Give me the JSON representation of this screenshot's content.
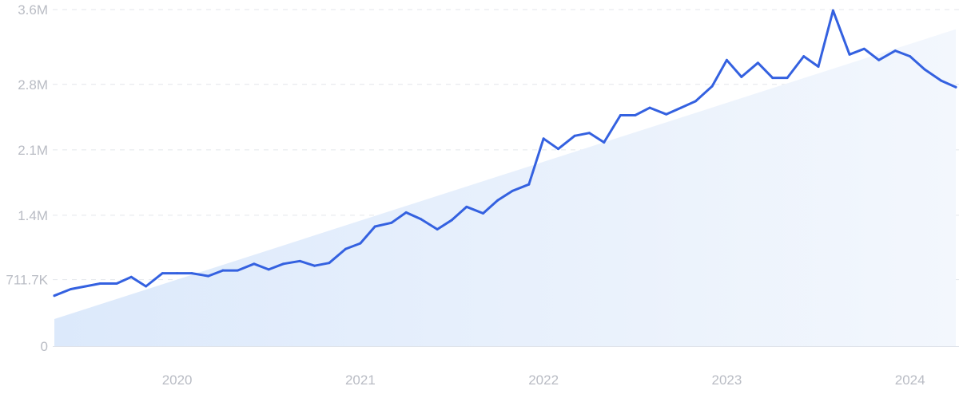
{
  "chart_data": {
    "type": "line",
    "title": "",
    "xlabel": "",
    "ylabel": "",
    "ylim": [
      0,
      3600000
    ],
    "xlim": [
      2019.33,
      2024.25
    ],
    "grid": true,
    "y_ticks": [
      {
        "value": 0,
        "label": "0"
      },
      {
        "value": 711700,
        "label": "711.7K"
      },
      {
        "value": 1400000,
        "label": "1.4M"
      },
      {
        "value": 2100000,
        "label": "2.1M"
      },
      {
        "value": 2800000,
        "label": "2.8M"
      },
      {
        "value": 3600000,
        "label": "3.6M"
      }
    ],
    "x_ticks": [
      {
        "value": 2020,
        "label": "2020"
      },
      {
        "value": 2021,
        "label": "2021"
      },
      {
        "value": 2022,
        "label": "2022"
      },
      {
        "value": 2023,
        "label": "2023"
      },
      {
        "value": 2024,
        "label": "2024"
      }
    ],
    "series": [
      {
        "color": "#3461e0",
        "x": [
          2019.33,
          2019.42,
          2019.5,
          2019.58,
          2019.67,
          2019.75,
          2019.83,
          2019.92,
          2020.0,
          2020.08,
          2020.17,
          2020.25,
          2020.33,
          2020.42,
          2020.5,
          2020.58,
          2020.67,
          2020.75,
          2020.83,
          2020.92,
          2021.0,
          2021.08,
          2021.17,
          2021.25,
          2021.33,
          2021.42,
          2021.5,
          2021.58,
          2021.67,
          2021.75,
          2021.83,
          2021.92,
          2022.0,
          2022.08,
          2022.17,
          2022.25,
          2022.33,
          2022.42,
          2022.5,
          2022.58,
          2022.67,
          2022.75,
          2022.83,
          2022.92,
          2023.0,
          2023.08,
          2023.17,
          2023.25,
          2023.33,
          2023.42,
          2023.5,
          2023.58,
          2023.67,
          2023.75,
          2023.83,
          2023.92,
          2024.0,
          2024.08,
          2024.17,
          2024.25
        ],
        "values": [
          540000,
          610000,
          640000,
          670000,
          670000,
          740000,
          640000,
          780000,
          780000,
          780000,
          750000,
          810000,
          810000,
          880000,
          820000,
          880000,
          910000,
          860000,
          890000,
          1040000,
          1100000,
          1280000,
          1320000,
          1430000,
          1360000,
          1250000,
          1350000,
          1490000,
          1420000,
          1560000,
          1660000,
          1730000,
          2220000,
          2110000,
          2250000,
          2280000,
          2180000,
          2470000,
          2470000,
          2550000,
          2480000,
          2550000,
          2620000,
          2780000,
          3060000,
          2880000,
          3030000,
          2870000,
          2870000,
          3100000,
          2990000,
          3590000,
          3120000,
          3180000,
          3060000,
          3160000,
          3100000,
          2960000,
          2840000,
          2770000
        ]
      }
    ],
    "trend": {
      "start": {
        "x": 2019.33,
        "y": 290000
      },
      "end": {
        "x": 2024.25,
        "y": 3390000
      }
    }
  }
}
